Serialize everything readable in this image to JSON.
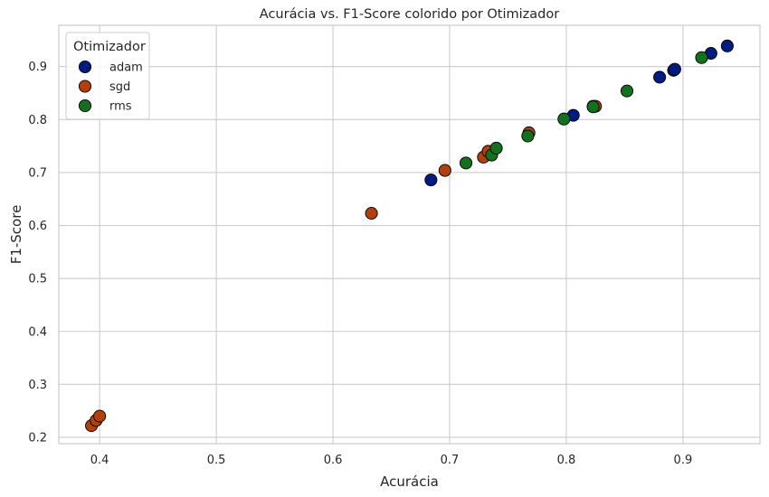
{
  "chart_data": {
    "type": "scatter",
    "title": "Acurácia vs. F1-Score colorido por Otimizador",
    "xlabel": "Acurácia",
    "ylabel": "F1-Score",
    "xlim": [
      0.365,
      0.966
    ],
    "ylim": [
      0.188,
      0.978
    ],
    "xticks": [
      "0.4",
      "0.5",
      "0.6",
      "0.7",
      "0.8",
      "0.9"
    ],
    "yticks": [
      "0.2",
      "0.3",
      "0.4",
      "0.5",
      "0.6",
      "0.7",
      "0.8",
      "0.9"
    ],
    "grid": true,
    "legend": {
      "title": "Otimizador",
      "placement": "top-left"
    },
    "series": [
      {
        "name": "adam",
        "color": "#001c7f",
        "points": [
          [
            0.684,
            0.686
          ],
          [
            0.806,
            0.808
          ],
          [
            0.823,
            0.825
          ],
          [
            0.88,
            0.88
          ],
          [
            0.892,
            0.893
          ],
          [
            0.893,
            0.895
          ],
          [
            0.924,
            0.925
          ],
          [
            0.938,
            0.939
          ]
        ]
      },
      {
        "name": "sgd",
        "color": "#b1400d",
        "points": [
          [
            0.393,
            0.222
          ],
          [
            0.397,
            0.232
          ],
          [
            0.4,
            0.24
          ],
          [
            0.633,
            0.623
          ],
          [
            0.696,
            0.704
          ],
          [
            0.729,
            0.729
          ],
          [
            0.733,
            0.74
          ],
          [
            0.768,
            0.775
          ],
          [
            0.825,
            0.825
          ]
        ]
      },
      {
        "name": "rms",
        "color": "#12711c",
        "points": [
          [
            0.714,
            0.718
          ],
          [
            0.736,
            0.733
          ],
          [
            0.74,
            0.746
          ],
          [
            0.767,
            0.769
          ],
          [
            0.798,
            0.801
          ],
          [
            0.823,
            0.824
          ],
          [
            0.852,
            0.854
          ],
          [
            0.916,
            0.917
          ]
        ]
      }
    ]
  }
}
